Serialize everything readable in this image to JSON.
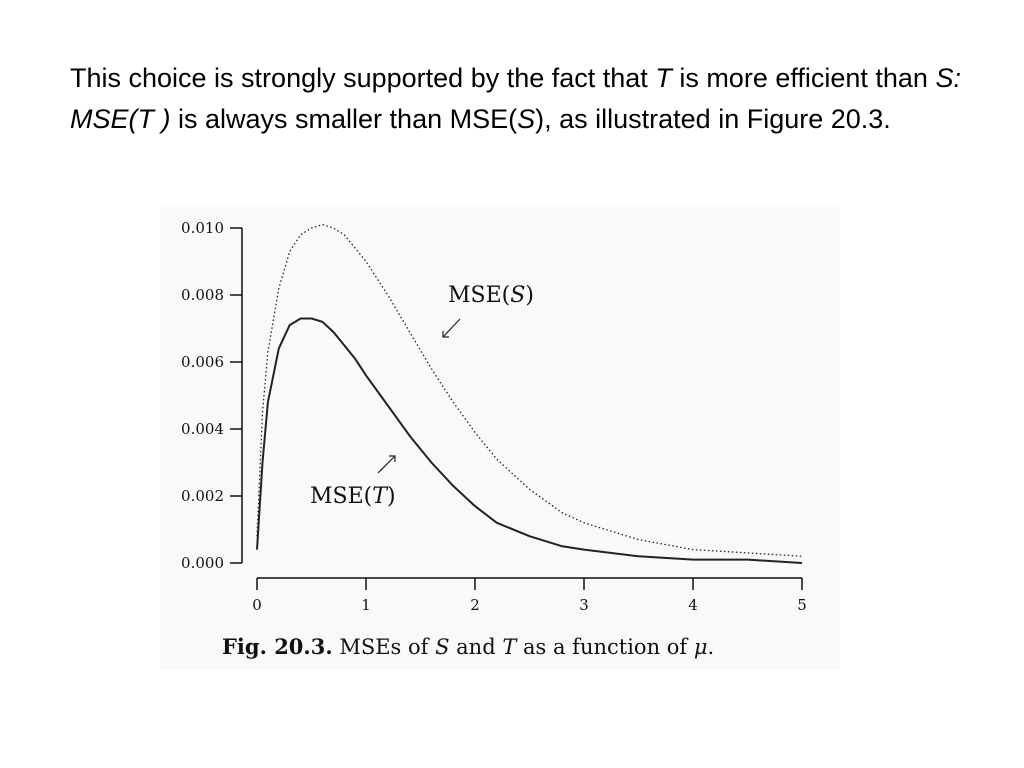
{
  "slide": {
    "paragraph": {
      "p1": "This choice is strongly supported by the fact that ",
      "p2": "T",
      "p3": " is more efficient than ",
      "p4": "S: MSE(T )",
      "p5": " is always smaller than MSE(",
      "p6": "S",
      "p7": "), as illustrated in Figure 20.3."
    }
  },
  "chart_data": {
    "type": "line",
    "xlim": [
      0,
      5
    ],
    "ylim": [
      0,
      0.01
    ],
    "x_ticks": [
      "0",
      "1",
      "2",
      "3",
      "4",
      "5"
    ],
    "y_ticks": [
      "0.000",
      "0.002",
      "0.004",
      "0.006",
      "0.008",
      "0.010"
    ],
    "grid": false,
    "series": [
      {
        "name": "MSE(S)",
        "style": "dotted",
        "x": [
          0,
          0.05,
          0.1,
          0.2,
          0.3,
          0.4,
          0.5,
          0.6,
          0.7,
          0.8,
          0.9,
          1.0,
          1.2,
          1.4,
          1.6,
          1.8,
          2.0,
          2.2,
          2.5,
          2.8,
          3.0,
          3.5,
          4.0,
          4.5,
          5.0
        ],
        "y": [
          0.0008,
          0.0045,
          0.0063,
          0.0082,
          0.0093,
          0.0098,
          0.01,
          0.0101,
          0.01,
          0.0098,
          0.0094,
          0.009,
          0.008,
          0.0069,
          0.0058,
          0.0048,
          0.0039,
          0.0031,
          0.0022,
          0.0015,
          0.0012,
          0.0007,
          0.0004,
          0.0003,
          0.0002
        ]
      },
      {
        "name": "MSE(T)",
        "style": "solid",
        "x": [
          0,
          0.05,
          0.1,
          0.2,
          0.3,
          0.4,
          0.5,
          0.6,
          0.7,
          0.8,
          0.9,
          1.0,
          1.2,
          1.4,
          1.6,
          1.8,
          2.0,
          2.2,
          2.5,
          2.8,
          3.0,
          3.5,
          4.0,
          4.5,
          5.0
        ],
        "y": [
          0.0004,
          0.003,
          0.0048,
          0.0064,
          0.0071,
          0.0073,
          0.0073,
          0.0072,
          0.0069,
          0.0065,
          0.0061,
          0.0056,
          0.0047,
          0.0038,
          0.003,
          0.0023,
          0.0017,
          0.0012,
          0.0008,
          0.0005,
          0.0004,
          0.0002,
          0.0001,
          0.0001,
          0.0
        ]
      }
    ],
    "annotations": {
      "s_prefix": "MSE(",
      "s_var": "S",
      "t_prefix": "MSE(",
      "t_var": "T",
      "close": ")"
    },
    "caption": {
      "bold": "Fig. 20.3.",
      "p1": " MSEs of ",
      "v1": "S",
      "p2": " and ",
      "v2": "T",
      "p3": " as a function of ",
      "v3": "μ",
      "p4": "."
    }
  }
}
